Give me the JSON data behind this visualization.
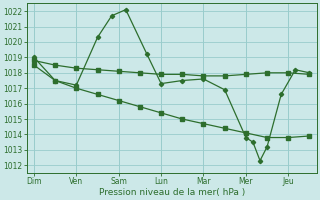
{
  "xlabel": "Pression niveau de la mer( hPa )",
  "bg_color": "#cce8e8",
  "grid_color": "#99cccc",
  "line_color": "#2d6e2d",
  "ylim": [
    1011.5,
    1022.5
  ],
  "yticks": [
    1012,
    1013,
    1014,
    1015,
    1016,
    1017,
    1018,
    1019,
    1020,
    1021,
    1022
  ],
  "day_labels": [
    "Dim",
    "Ven",
    "Sam",
    "Lun",
    "Mar",
    "Mer",
    "Jeu"
  ],
  "day_positions": [
    0,
    6,
    12,
    18,
    24,
    30,
    36
  ],
  "xlim": [
    -1,
    40
  ],
  "line_flat_x": [
    0,
    3,
    6,
    9,
    12,
    15,
    18,
    21,
    24,
    27,
    30,
    33,
    36,
    39
  ],
  "line_flat_y": [
    1018.8,
    1018.5,
    1018.3,
    1018.2,
    1018.1,
    1018.0,
    1017.9,
    1017.9,
    1017.8,
    1017.8,
    1017.9,
    1018.0,
    1018.0,
    1017.9
  ],
  "line_wave_x": [
    0,
    3,
    6,
    9,
    11,
    13,
    16,
    18,
    21,
    24,
    27,
    30,
    31,
    32,
    33,
    35,
    37,
    39
  ],
  "line_wave_y": [
    1019.0,
    1017.5,
    1017.2,
    1020.3,
    1021.7,
    1022.1,
    1019.2,
    1017.3,
    1017.5,
    1017.6,
    1016.9,
    1013.8,
    1013.5,
    1012.3,
    1013.2,
    1016.6,
    1018.2,
    1018.0
  ],
  "line_diag_x": [
    0,
    3,
    6,
    9,
    12,
    15,
    18,
    21,
    24,
    27,
    30,
    33,
    36,
    39
  ],
  "line_diag_y": [
    1018.5,
    1017.5,
    1017.0,
    1016.6,
    1016.2,
    1015.8,
    1015.4,
    1015.0,
    1014.7,
    1014.4,
    1014.1,
    1013.8,
    1013.8,
    1013.9
  ]
}
